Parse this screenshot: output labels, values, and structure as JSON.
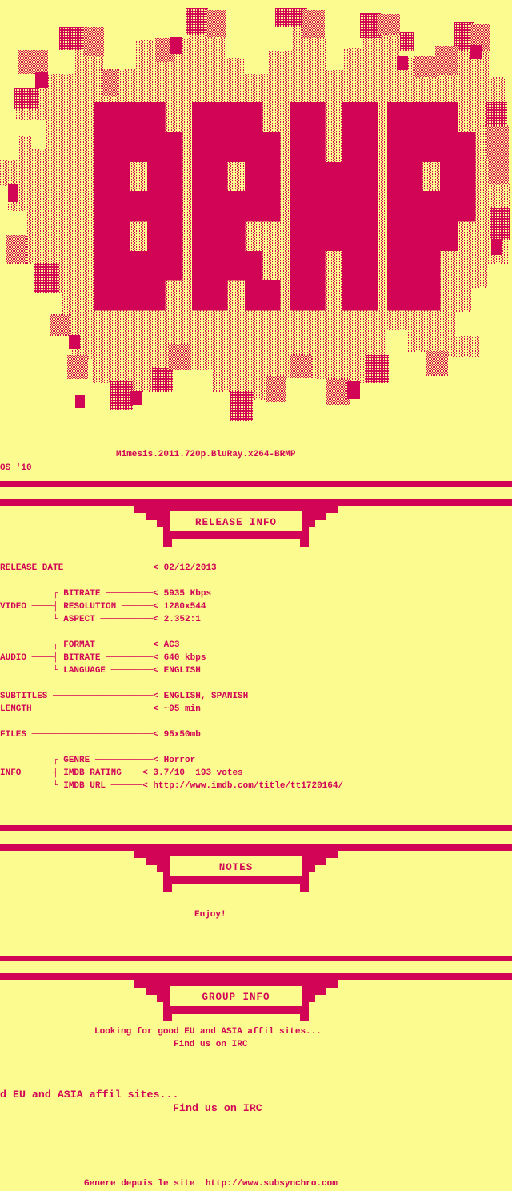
{
  "palette": {
    "background": "#FBFB8F",
    "accent": "#D20456"
  },
  "logo": {
    "word": "BRMP"
  },
  "header": {
    "release_name": "Mimesis.2011.720p.BluRay.x264-BRMP",
    "corner_note": "OS '10"
  },
  "sections": {
    "release_info": {
      "title": "RELEASE INFO",
      "release_date": "02/12/2013",
      "video": {
        "bitrate": "5935 Kbps",
        "resolution": "1280x544",
        "aspect": "2.352:1"
      },
      "audio": {
        "format": "AC3",
        "bitrate": "640 kbps",
        "language": "ENGLISH"
      },
      "subtitles": "ENGLISH, SPANISH",
      "length": "~95 min",
      "files": "95x50mb",
      "info": {
        "genre": "Horror",
        "imdb_rating": "3.7/10  193 votes",
        "imdb_url": "http://www.imdb.com/title/tt1720164/"
      },
      "ascii_lines": [
        "RELEASE DATE ────────────────< 02/12/2013",
        "",
        "          ┌ BITRATE ─────────< 5935 Kbps",
        "VIDEO ────┤ RESOLUTION ──────< 1280x544",
        "          └ ASPECT ──────────< 2.352:1",
        "",
        "          ┌ FORMAT ──────────< AC3",
        "AUDIO ────┤ BITRATE ─────────< 640 kbps",
        "          └ LANGUAGE ────────< ENGLISH",
        "",
        "SUBTITLES ───────────────────< ENGLISH, SPANISH",
        "LENGTH ──────────────────────< ~95 min",
        "",
        "FILES ───────────────────────< 95x50mb",
        "",
        "          ┌ GENRE ───────────< Horror",
        "INFO ─────┤ IMDB RATING ───< 3.7/10  193 votes",
        "          └ IMDB URL ──────< http://www.imdb.com/title/tt1720164/"
      ]
    },
    "notes": {
      "title": "NOTES",
      "body": "Enjoy!"
    },
    "group_info": {
      "title": "GROUP INFO",
      "lines": [
        "Looking for good EU and ASIA affil sites...",
        "Find us on IRC"
      ],
      "stray_lines": [
        "d EU and ASIA affil sites...",
        "Find us on IRC"
      ]
    }
  },
  "footer": {
    "credit": "Genere depuis le site  http://www.subsynchro.com"
  }
}
